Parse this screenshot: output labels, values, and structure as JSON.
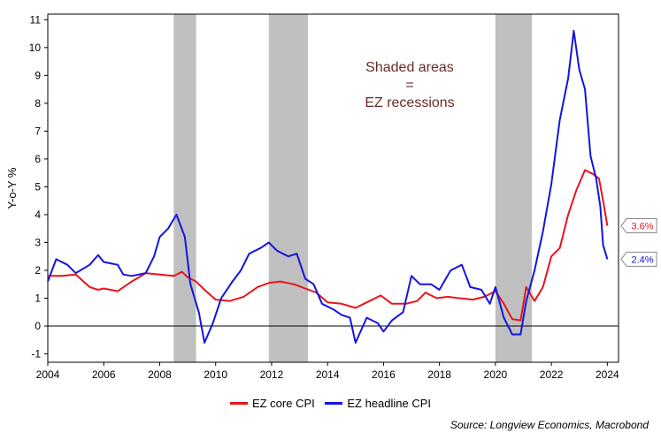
{
  "chart_data": {
    "type": "line",
    "ylabel": "Y-o-Y %",
    "xlim": [
      2004,
      2024.4
    ],
    "ylim": [
      -1.3,
      11.2
    ],
    "x_ticks": [
      "2004",
      "2006",
      "2008",
      "2010",
      "2012",
      "2014",
      "2016",
      "2018",
      "2020",
      "2022",
      "2024"
    ],
    "y_ticks": [
      "-1",
      "0",
      "1",
      "2",
      "3",
      "4",
      "5",
      "6",
      "7",
      "8",
      "9",
      "10",
      "11"
    ],
    "zero_line": 0,
    "recessions": [
      {
        "start": 2008.5,
        "end": 2009.3
      },
      {
        "start": 2011.9,
        "end": 2013.3
      },
      {
        "start": 2020.0,
        "end": 2021.3
      }
    ],
    "annotation": {
      "lines": [
        "Shaded areas",
        "=",
        "EZ recessions"
      ]
    },
    "series": [
      {
        "name": "EZ core CPI",
        "color": "#e8141b",
        "end_label": "3.6%",
        "points": [
          [
            2004.0,
            1.8
          ],
          [
            2004.5,
            1.8
          ],
          [
            2005.0,
            1.85
          ],
          [
            2005.5,
            1.4
          ],
          [
            2005.8,
            1.3
          ],
          [
            2006.0,
            1.35
          ],
          [
            2006.5,
            1.25
          ],
          [
            2007.0,
            1.6
          ],
          [
            2007.5,
            1.9
          ],
          [
            2008.0,
            1.85
          ],
          [
            2008.5,
            1.8
          ],
          [
            2008.8,
            1.95
          ],
          [
            2009.0,
            1.75
          ],
          [
            2009.3,
            1.6
          ],
          [
            2009.6,
            1.3
          ],
          [
            2010.0,
            0.95
          ],
          [
            2010.5,
            0.9
          ],
          [
            2011.0,
            1.05
          ],
          [
            2011.5,
            1.4
          ],
          [
            2011.9,
            1.55
          ],
          [
            2012.3,
            1.6
          ],
          [
            2012.8,
            1.5
          ],
          [
            2013.2,
            1.35
          ],
          [
            2013.6,
            1.2
          ],
          [
            2014.0,
            0.85
          ],
          [
            2014.5,
            0.8
          ],
          [
            2015.0,
            0.65
          ],
          [
            2015.5,
            0.9
          ],
          [
            2015.9,
            1.1
          ],
          [
            2016.3,
            0.8
          ],
          [
            2016.8,
            0.8
          ],
          [
            2017.2,
            0.9
          ],
          [
            2017.5,
            1.2
          ],
          [
            2017.9,
            1.0
          ],
          [
            2018.3,
            1.05
          ],
          [
            2018.7,
            1.0
          ],
          [
            2019.2,
            0.95
          ],
          [
            2019.6,
            1.05
          ],
          [
            2020.0,
            1.25
          ],
          [
            2020.3,
            0.8
          ],
          [
            2020.6,
            0.25
          ],
          [
            2020.9,
            0.2
          ],
          [
            2021.1,
            1.4
          ],
          [
            2021.4,
            0.9
          ],
          [
            2021.7,
            1.4
          ],
          [
            2022.0,
            2.5
          ],
          [
            2022.3,
            2.8
          ],
          [
            2022.6,
            4.0
          ],
          [
            2022.9,
            4.9
          ],
          [
            2023.2,
            5.6
          ],
          [
            2023.5,
            5.45
          ],
          [
            2023.7,
            5.3
          ],
          [
            2023.85,
            4.5
          ],
          [
            2024.0,
            3.6
          ]
        ]
      },
      {
        "name": "EZ headline CPI",
        "color": "#1414e0",
        "end_label": "2.4%",
        "points": [
          [
            2004.0,
            1.6
          ],
          [
            2004.3,
            2.4
          ],
          [
            2004.7,
            2.2
          ],
          [
            2005.0,
            1.9
          ],
          [
            2005.5,
            2.2
          ],
          [
            2005.8,
            2.55
          ],
          [
            2006.0,
            2.3
          ],
          [
            2006.5,
            2.2
          ],
          [
            2006.7,
            1.85
          ],
          [
            2007.0,
            1.8
          ],
          [
            2007.5,
            1.9
          ],
          [
            2007.8,
            2.5
          ],
          [
            2008.0,
            3.2
          ],
          [
            2008.3,
            3.5
          ],
          [
            2008.6,
            4.0
          ],
          [
            2008.9,
            3.2
          ],
          [
            2009.1,
            1.5
          ],
          [
            2009.4,
            0.5
          ],
          [
            2009.6,
            -0.6
          ],
          [
            2009.9,
            0.1
          ],
          [
            2010.2,
            1.0
          ],
          [
            2010.6,
            1.6
          ],
          [
            2010.9,
            2.0
          ],
          [
            2011.2,
            2.6
          ],
          [
            2011.6,
            2.8
          ],
          [
            2011.9,
            3.0
          ],
          [
            2012.2,
            2.7
          ],
          [
            2012.6,
            2.5
          ],
          [
            2012.9,
            2.6
          ],
          [
            2013.2,
            1.7
          ],
          [
            2013.5,
            1.5
          ],
          [
            2013.8,
            0.8
          ],
          [
            2014.2,
            0.6
          ],
          [
            2014.5,
            0.4
          ],
          [
            2014.8,
            0.3
          ],
          [
            2015.0,
            -0.6
          ],
          [
            2015.4,
            0.3
          ],
          [
            2015.8,
            0.1
          ],
          [
            2016.0,
            -0.2
          ],
          [
            2016.3,
            0.2
          ],
          [
            2016.7,
            0.5
          ],
          [
            2017.0,
            1.8
          ],
          [
            2017.3,
            1.5
          ],
          [
            2017.7,
            1.5
          ],
          [
            2018.0,
            1.3
          ],
          [
            2018.4,
            2.0
          ],
          [
            2018.8,
            2.2
          ],
          [
            2019.1,
            1.4
          ],
          [
            2019.5,
            1.3
          ],
          [
            2019.8,
            0.8
          ],
          [
            2020.0,
            1.4
          ],
          [
            2020.3,
            0.3
          ],
          [
            2020.6,
            -0.3
          ],
          [
            2020.9,
            -0.3
          ],
          [
            2021.1,
            0.9
          ],
          [
            2021.4,
            2.0
          ],
          [
            2021.7,
            3.4
          ],
          [
            2022.0,
            5.1
          ],
          [
            2022.3,
            7.4
          ],
          [
            2022.6,
            8.9
          ],
          [
            2022.8,
            10.6
          ],
          [
            2023.0,
            9.2
          ],
          [
            2023.2,
            8.5
          ],
          [
            2023.4,
            6.1
          ],
          [
            2023.6,
            5.3
          ],
          [
            2023.75,
            4.3
          ],
          [
            2023.85,
            2.9
          ],
          [
            2024.0,
            2.4
          ]
        ]
      }
    ]
  },
  "source": "Source: Longview Economics, Macrobond"
}
